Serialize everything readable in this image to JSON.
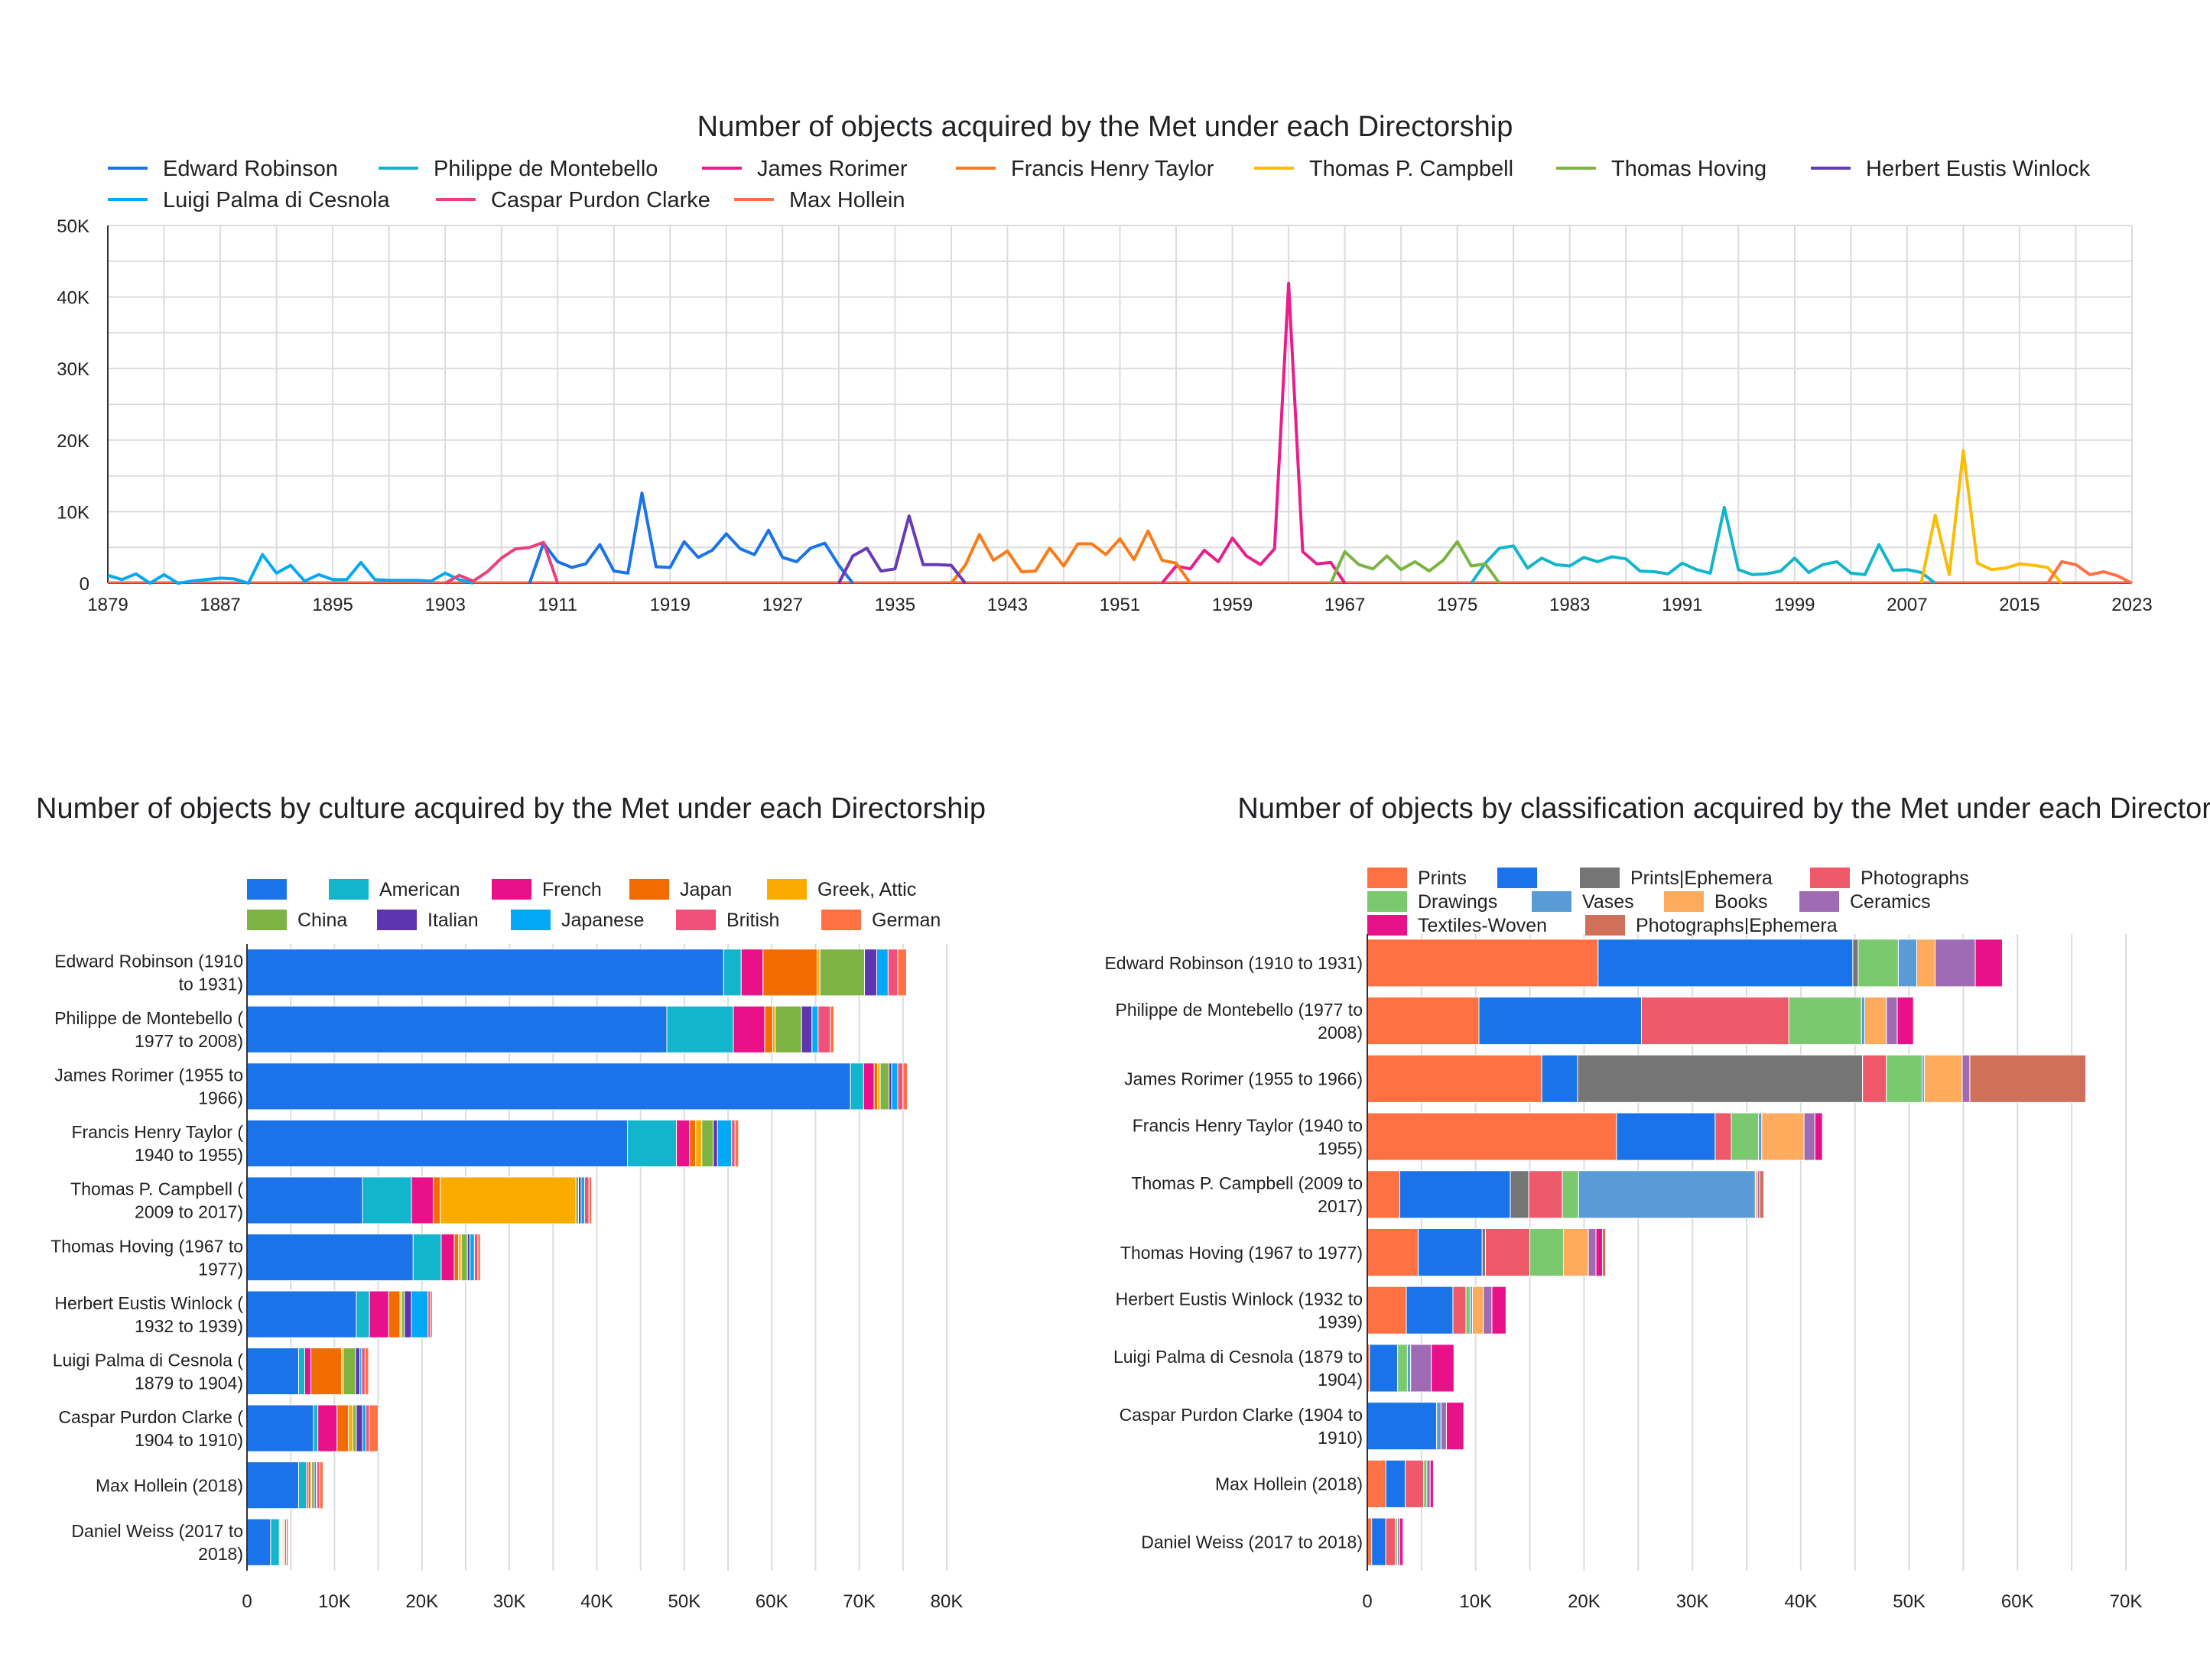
{
  "chart_data": [
    {
      "type": "line",
      "title": "Number of objects acquired by the Met under each Directorship",
      "xlabel": "",
      "ylabel": "",
      "xlim": [
        1879,
        2023
      ],
      "ylim": [
        0,
        50000
      ],
      "x_ticks": [
        "1879",
        "1887",
        "1895",
        "1903",
        "1911",
        "1919",
        "1927",
        "1935",
        "1943",
        "1951",
        "1959",
        "1967",
        "1975",
        "1983",
        "1991",
        "1999",
        "2007",
        "2015",
        "2023"
      ],
      "y_ticks": [
        "0",
        "10K",
        "20K",
        "30K",
        "40K",
        "50K"
      ],
      "grid": true,
      "legend": "top",
      "series": [
        {
          "name": "Edward Robinson",
          "color": "#1a73e8",
          "x": [
            1909,
            1910,
            1911,
            1912,
            1913,
            1914,
            1915,
            1916,
            1917,
            1918,
            1919,
            1920,
            1921,
            1922,
            1923,
            1924,
            1925,
            1926,
            1927,
            1928,
            1929,
            1930,
            1931,
            1932
          ],
          "y": [
            0,
            5600,
            3000,
            2200,
            2700,
            5400,
            1700,
            1400,
            12600,
            2300,
            2200,
            5800,
            3600,
            4600,
            6900,
            4800,
            4000,
            7400,
            3600,
            3000,
            4900,
            5600,
            2500,
            0
          ]
        },
        {
          "name": "Philippe de Montebello",
          "color": "#12b5cb",
          "x": [
            1976,
            1977,
            1978,
            1979,
            1980,
            1981,
            1982,
            1983,
            1984,
            1985,
            1986,
            1987,
            1988,
            1989,
            1990,
            1991,
            1992,
            1993,
            1994,
            1995,
            1996,
            1997,
            1998,
            1999,
            2000,
            2001,
            2002,
            2003,
            2004,
            2005,
            2006,
            2007,
            2008,
            2009
          ],
          "y": [
            0,
            2800,
            4900,
            5200,
            2100,
            3500,
            2600,
            2400,
            3600,
            3000,
            3700,
            3400,
            1700,
            1600,
            1300,
            2800,
            1900,
            1400,
            10600,
            1900,
            1200,
            1300,
            1700,
            3500,
            1500,
            2600,
            3000,
            1400,
            1200,
            5400,
            1800,
            1900,
            1500,
            0
          ]
        },
        {
          "name": "James Rorimer",
          "color": "#e91e8c",
          "x": [
            1954,
            1955,
            1956,
            1957,
            1958,
            1959,
            1960,
            1961,
            1962,
            1963,
            1964,
            1965,
            1966,
            1967
          ],
          "y": [
            0,
            2400,
            2000,
            4600,
            3000,
            6300,
            3800,
            2600,
            4800,
            41900,
            4400,
            2700,
            2900,
            0
          ]
        },
        {
          "name": "Francis Henry Taylor",
          "color": "#fa7b17",
          "x": [
            1939,
            1940,
            1941,
            1942,
            1943,
            1944,
            1945,
            1946,
            1947,
            1948,
            1949,
            1950,
            1951,
            1952,
            1953,
            1954,
            1955,
            1956
          ],
          "y": [
            0,
            2500,
            6800,
            3200,
            4500,
            1600,
            1700,
            4900,
            2400,
            5500,
            5500,
            4000,
            6200,
            3300,
            7300,
            3200,
            2800,
            0
          ]
        },
        {
          "name": "Thomas P. Campbell",
          "color": "#fbbc04",
          "x": [
            2008,
            2009,
            2010,
            2011,
            2012,
            2013,
            2014,
            2015,
            2016,
            2017,
            2018
          ],
          "y": [
            0,
            9500,
            1200,
            18500,
            2800,
            1900,
            2100,
            2700,
            2500,
            2200,
            0
          ]
        },
        {
          "name": "Thomas Hoving",
          "color": "#7cb342",
          "x": [
            1966,
            1967,
            1968,
            1969,
            1970,
            1971,
            1972,
            1973,
            1974,
            1975,
            1976,
            1977,
            1978
          ],
          "y": [
            0,
            4400,
            2600,
            2000,
            3800,
            1900,
            3000,
            1700,
            3200,
            5800,
            2400,
            2700,
            0
          ]
        },
        {
          "name": "Herbert Eustis Winlock",
          "color": "#673ab7",
          "x": [
            1931,
            1932,
            1933,
            1934,
            1935,
            1936,
            1937,
            1938,
            1939,
            1940
          ],
          "y": [
            0,
            3800,
            4900,
            1700,
            2000,
            9400,
            2600,
            2600,
            2500,
            0
          ]
        },
        {
          "name": "Luigi Palma di Cesnola",
          "color": "#03a9f4",
          "x": [
            1879,
            1880,
            1881,
            1882,
            1883,
            1884,
            1885,
            1886,
            1887,
            1888,
            1889,
            1890,
            1891,
            1892,
            1893,
            1894,
            1895,
            1896,
            1897,
            1898,
            1899,
            1900,
            1901,
            1902,
            1903,
            1904,
            1905
          ],
          "y": [
            1100,
            500,
            1300,
            0,
            1200,
            0,
            300,
            500,
            700,
            600,
            0,
            4000,
            1400,
            2500,
            300,
            1200,
            500,
            500,
            2900,
            500,
            400,
            400,
            400,
            300,
            1400,
            500,
            0
          ]
        },
        {
          "name": "Caspar Purdon Clarke",
          "color": "#ec407a",
          "x": [
            1903,
            1904,
            1905,
            1906,
            1907,
            1908,
            1909,
            1910,
            1911
          ],
          "y": [
            0,
            1100,
            300,
            1600,
            3500,
            4800,
            5000,
            5700,
            0
          ]
        },
        {
          "name": "Max Hollein",
          "color": "#ff7043",
          "x": [
            2017,
            2018,
            2019,
            2020,
            2021,
            2022,
            2023
          ],
          "y": [
            0,
            3000,
            2600,
            1200,
            1600,
            1000,
            0
          ]
        }
      ]
    },
    {
      "type": "bar",
      "orientation": "horizontal",
      "stacked": true,
      "title": "Number of objects by culture acquired by the Met under each Directorship",
      "xlabel": "",
      "ylabel": "",
      "xlim": [
        0,
        80000
      ],
      "x_ticks": [
        "0",
        "10K",
        "20K",
        "30K",
        "40K",
        "50K",
        "60K",
        "70K",
        "80K"
      ],
      "grid": true,
      "legend": "top",
      "categories": [
        [
          "Edward Robinson (1910",
          "to 1931)"
        ],
        [
          "Philippe de Montebello (",
          "1977 to 2008)"
        ],
        [
          "James Rorimer (1955 to",
          "1966)"
        ],
        [
          "Francis Henry Taylor (",
          "1940 to 1955)"
        ],
        [
          "Thomas P. Campbell (",
          "2009 to 2017)"
        ],
        [
          "Thomas Hoving (1967 to",
          "1977)"
        ],
        [
          "Herbert Eustis Winlock (",
          "1932 to 1939)"
        ],
        [
          "Luigi Palma di Cesnola (",
          "1879 to 1904)"
        ],
        [
          "Caspar Purdon Clarke (",
          "1904 to 1910)"
        ],
        [
          "Max Hollein (2018)"
        ],
        [
          "Daniel Weiss (2017 to",
          "2018)"
        ]
      ],
      "series": [
        {
          "name": "",
          "color": "#1a73e8",
          "values": [
            54500,
            48000,
            69000,
            43500,
            13200,
            19000,
            12500,
            5900,
            7600,
            5900,
            2700
          ]
        },
        {
          "name": "American",
          "color": "#12b5cb",
          "values": [
            2000,
            7600,
            1500,
            5600,
            5600,
            3200,
            1500,
            700,
            500,
            900,
            1000
          ]
        },
        {
          "name": "French",
          "color": "#e8118a",
          "values": [
            2500,
            3600,
            1200,
            1500,
            2500,
            1500,
            2200,
            700,
            2200,
            200,
            100
          ]
        },
        {
          "name": "Japan",
          "color": "#f26b00",
          "values": [
            6200,
            900,
            400,
            700,
            800,
            500,
            1300,
            3500,
            1300,
            300,
            100
          ]
        },
        {
          "name": "Greek, Attic",
          "color": "#f9ab00",
          "values": [
            300,
            300,
            300,
            700,
            15500,
            300,
            200,
            200,
            500,
            100,
            100
          ]
        },
        {
          "name": "China",
          "color": "#7cb342",
          "values": [
            5100,
            3000,
            1000,
            1300,
            300,
            700,
            300,
            1400,
            400,
            300,
            100
          ]
        },
        {
          "name": "Italian",
          "color": "#5e35b1",
          "values": [
            1400,
            1200,
            300,
            500,
            300,
            300,
            800,
            500,
            700,
            200,
            100
          ]
        },
        {
          "name": "Japanese",
          "color": "#03a9f4",
          "values": [
            1300,
            700,
            700,
            1600,
            400,
            500,
            1900,
            200,
            400,
            100,
            100
          ]
        },
        {
          "name": "British",
          "color": "#f0507a",
          "values": [
            1100,
            1400,
            600,
            400,
            500,
            400,
            300,
            400,
            400,
            300,
            200
          ]
        },
        {
          "name": "German",
          "color": "#ff7043",
          "values": [
            1000,
            400,
            500,
            400,
            300,
            300,
            200,
            400,
            1000,
            400,
            200
          ]
        }
      ]
    },
    {
      "type": "bar",
      "orientation": "horizontal",
      "stacked": true,
      "title": "Number of objects by classification acquired by the Met under each Directorship",
      "xlabel": "",
      "ylabel": "",
      "xlim": [
        0,
        70000
      ],
      "x_ticks": [
        "0",
        "10K",
        "20K",
        "30K",
        "40K",
        "50K",
        "60K",
        "70K"
      ],
      "grid": true,
      "legend": "top",
      "categories": [
        [
          "Edward Robinson (1910 to 1931)"
        ],
        [
          "Philippe de Montebello (1977 to",
          "2008)"
        ],
        [
          "James Rorimer (1955 to 1966)"
        ],
        [
          "Francis Henry Taylor (1940 to",
          "1955)"
        ],
        [
          "Thomas P. Campbell (2009 to",
          "2017)"
        ],
        [
          "Thomas Hoving (1967 to 1977)"
        ],
        [
          "Herbert Eustis Winlock (1932 to",
          "1939)"
        ],
        [
          "Luigi Palma di Cesnola (1879 to",
          "1904)"
        ],
        [
          "Caspar Purdon Clarke (1904 to",
          "1910)"
        ],
        [
          "Max Hollein (2018)"
        ],
        [
          "Daniel Weiss (2017 to 2018)"
        ]
      ],
      "series": [
        {
          "name": "Prints",
          "color": "#ff7043",
          "values": [
            21300,
            10300,
            16100,
            23000,
            3000,
            4700,
            3600,
            200,
            0,
            1700,
            400
          ]
        },
        {
          "name": "",
          "color": "#1a73e8",
          "values": [
            23500,
            15000,
            3300,
            9100,
            10200,
            5900,
            4300,
            2600,
            6400,
            1800,
            1300
          ]
        },
        {
          "name": "Prints|Ephemera",
          "color": "#757575",
          "values": [
            500,
            0,
            26300,
            0,
            1700,
            300,
            0,
            0,
            0,
            0,
            0
          ]
        },
        {
          "name": "Photographs",
          "color": "#ef5a6b",
          "values": [
            0,
            13600,
            2200,
            1500,
            3100,
            4100,
            1200,
            0,
            0,
            1700,
            900
          ]
        },
        {
          "name": "Drawings",
          "color": "#7bc96f",
          "values": [
            3700,
            6700,
            3300,
            2500,
            1500,
            3100,
            400,
            900,
            0,
            300,
            200
          ]
        },
        {
          "name": "Vases",
          "color": "#5b9bd5",
          "values": [
            1700,
            300,
            200,
            300,
            16300,
            0,
            200,
            300,
            400,
            0,
            0
          ]
        },
        {
          "name": "Books",
          "color": "#ffab5e",
          "values": [
            1700,
            2000,
            3500,
            3900,
            200,
            2300,
            1000,
            0,
            0,
            0,
            0
          ]
        },
        {
          "name": "Ceramics",
          "color": "#a06bb5",
          "values": [
            3700,
            1000,
            700,
            1000,
            200,
            700,
            800,
            1900,
            500,
            300,
            200
          ]
        },
        {
          "name": "Textiles-Woven",
          "color": "#e8118a",
          "values": [
            2500,
            1500,
            0,
            700,
            0,
            600,
            1300,
            2100,
            1600,
            300,
            300
          ]
        },
        {
          "name": "Photographs|Ephemera",
          "color": "#d0705a",
          "values": [
            0,
            0,
            10700,
            0,
            400,
            300,
            0,
            0,
            0,
            0,
            0
          ]
        }
      ]
    }
  ]
}
